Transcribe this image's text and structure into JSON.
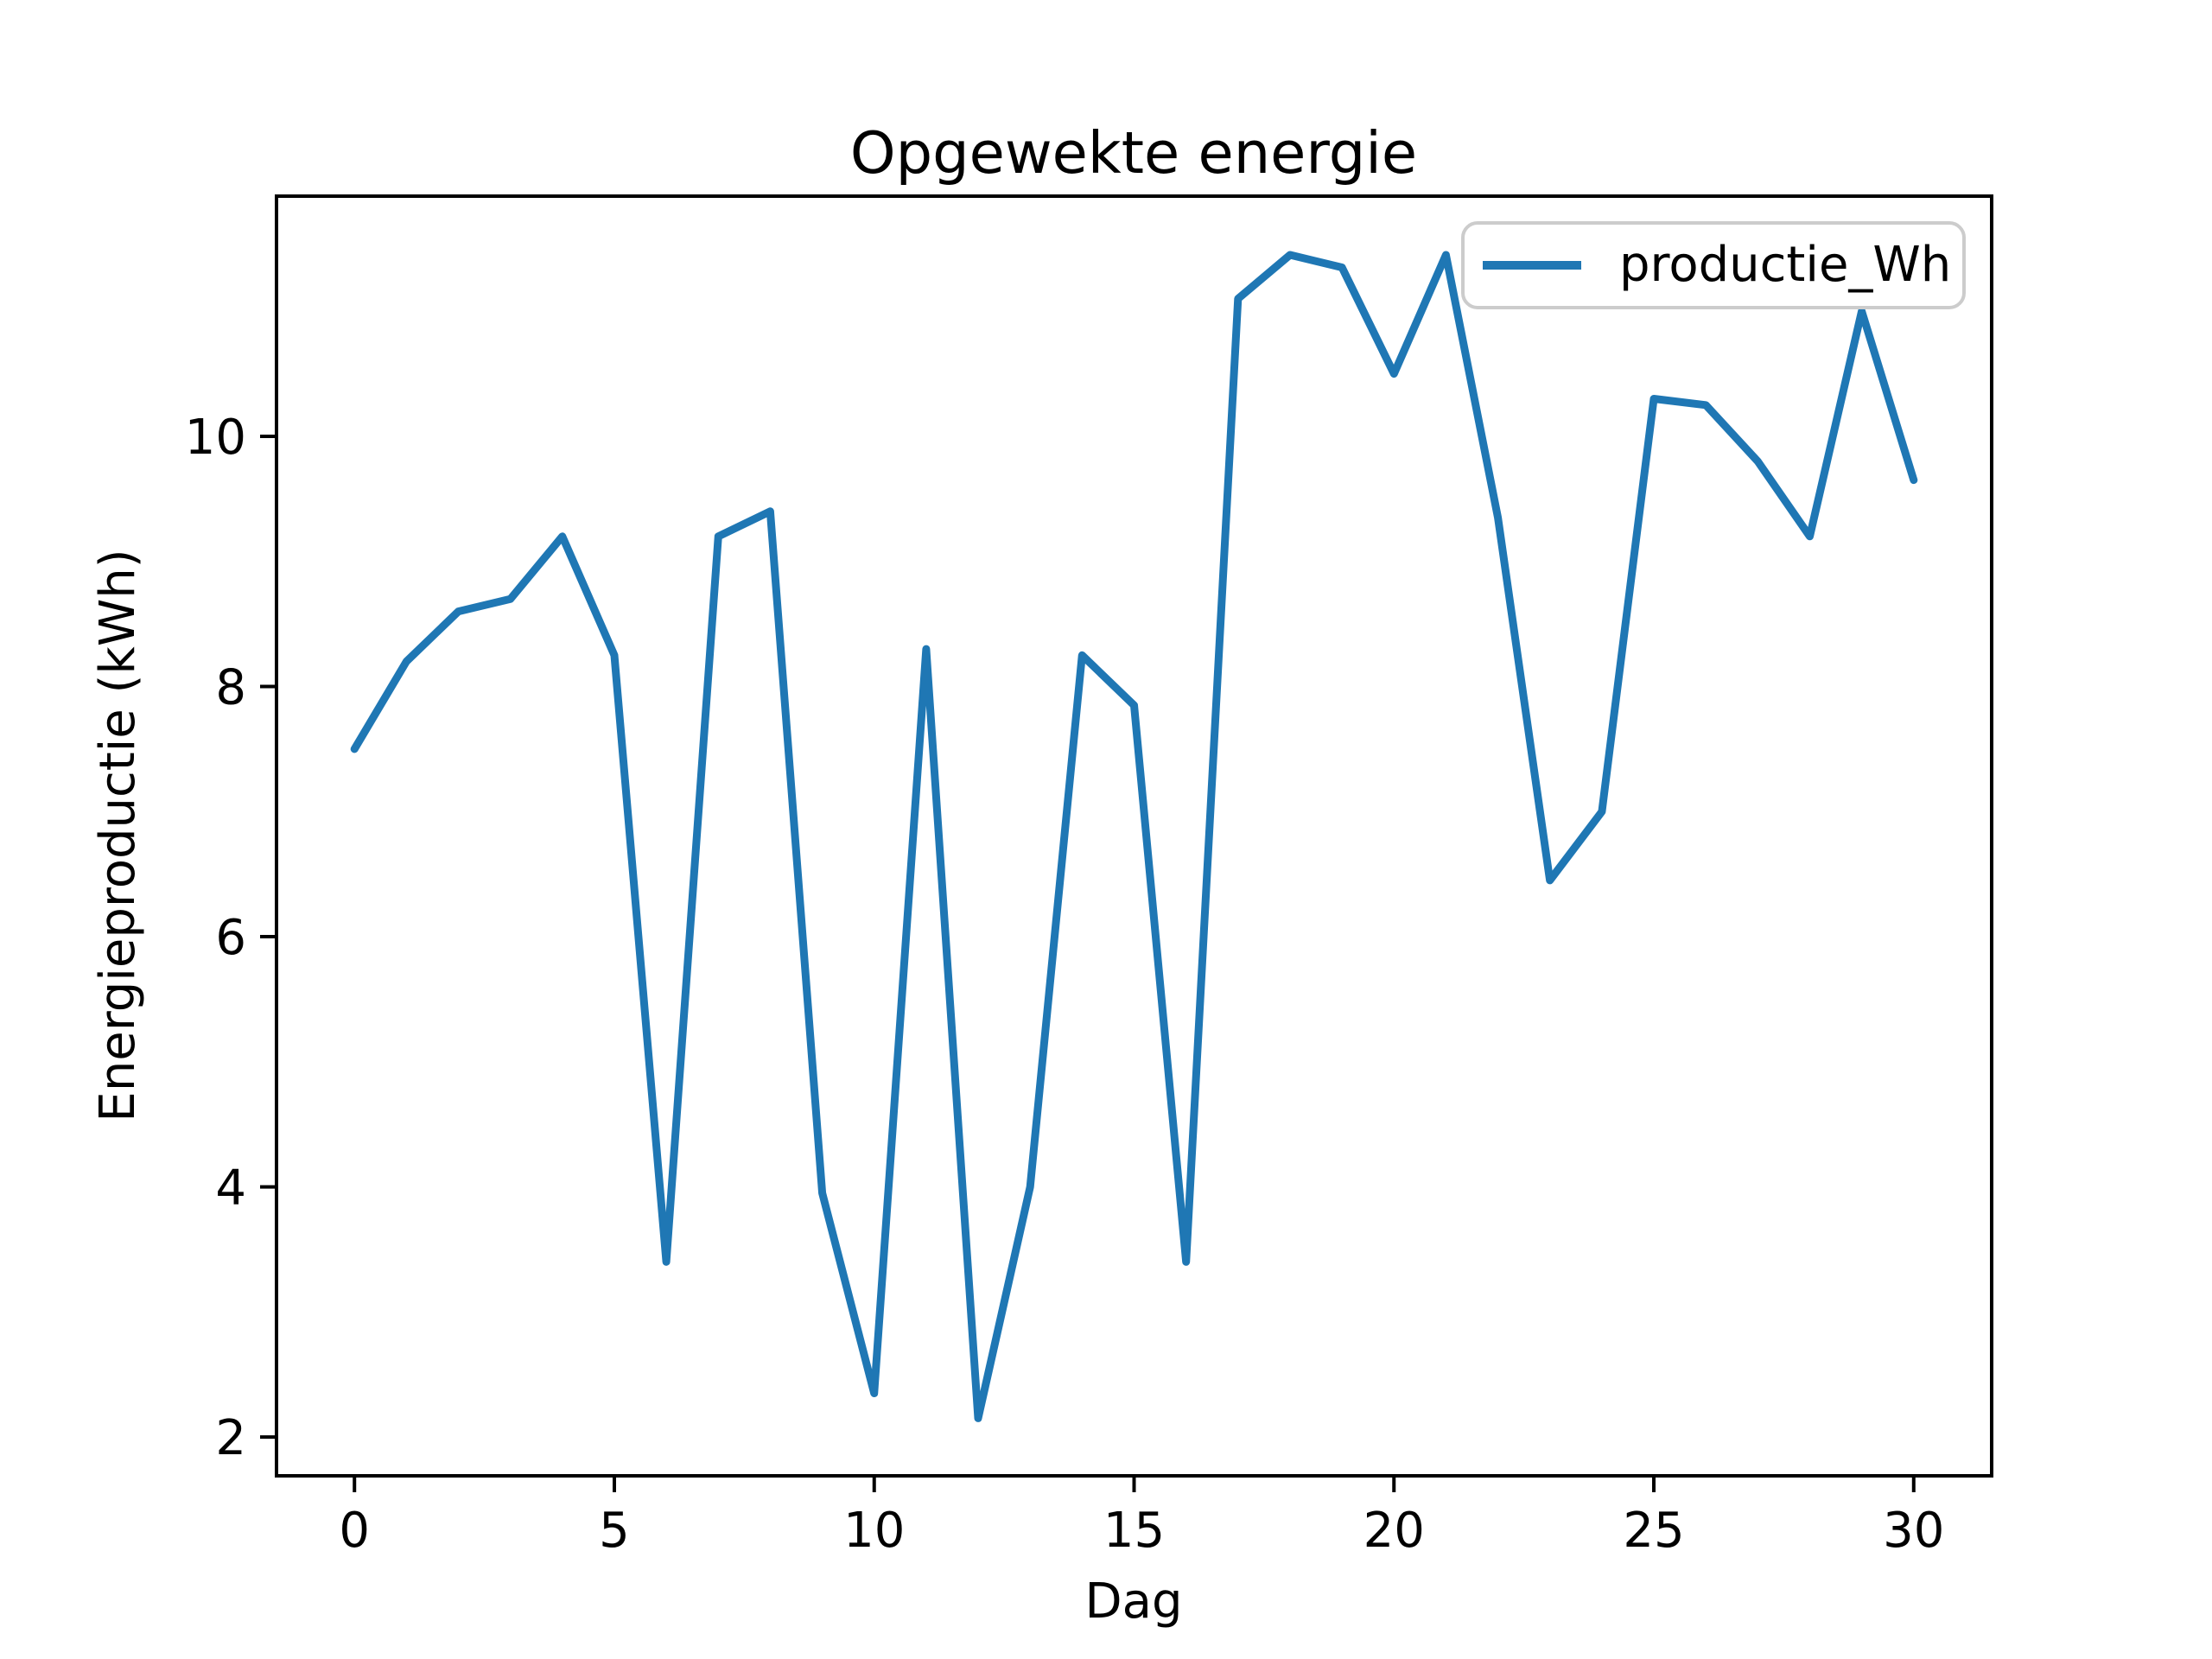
{
  "figure": {
    "background": "#ffffff",
    "title": "Opgewekte energie"
  },
  "chart_data": {
    "type": "line",
    "title": "Opgewekte energie",
    "xlabel": "Dag",
    "ylabel": "Energieproductie (kWh)",
    "x": [
      0,
      1,
      2,
      3,
      4,
      5,
      6,
      7,
      8,
      9,
      10,
      11,
      12,
      13,
      14,
      15,
      16,
      17,
      18,
      19,
      20,
      21,
      22,
      23,
      24,
      25,
      26,
      27,
      28,
      29,
      30
    ],
    "series": [
      {
        "name": "productie_Wh",
        "color": "#1f77b4",
        "values": [
          7.5,
          8.2,
          8.6,
          8.7,
          9.2,
          8.25,
          3.4,
          9.2,
          9.4,
          3.95,
          2.35,
          8.3,
          2.15,
          4.0,
          8.25,
          7.85,
          3.4,
          11.1,
          11.45,
          11.35,
          10.5,
          11.45,
          9.35,
          6.45,
          7.0,
          10.3,
          10.25,
          9.8,
          9.2,
          11.0,
          9.65
        ]
      }
    ],
    "xticks": [
      0,
      5,
      10,
      15,
      20,
      25,
      30
    ],
    "yticks": [
      2,
      4,
      6,
      8,
      10
    ],
    "xlim": [
      -1.5,
      31.5
    ],
    "ylim": [
      1.69,
      11.92
    ],
    "grid": false,
    "legend": {
      "position": "upper right",
      "entries": [
        "productie_Wh"
      ],
      "border_color": "#cccccc",
      "background": "#ffffff"
    },
    "axis_color": "#000000"
  }
}
